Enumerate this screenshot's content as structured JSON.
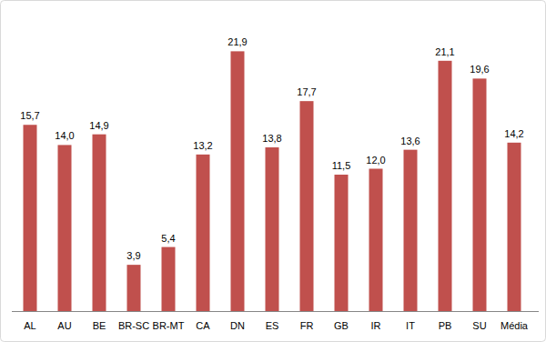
{
  "chart_data": {
    "type": "bar",
    "categories": [
      "AL",
      "AU",
      "BE",
      "BR-SC",
      "BR-MT",
      "CA",
      "DN",
      "ES",
      "FR",
      "GB",
      "IR",
      "IT",
      "PB",
      "SU",
      "Média"
    ],
    "values": [
      15.7,
      14.0,
      14.9,
      3.9,
      5.4,
      13.2,
      21.9,
      13.8,
      17.7,
      11.5,
      12.0,
      13.6,
      21.1,
      19.6,
      14.2
    ],
    "value_labels": [
      "15,7",
      "14,0",
      "14,9",
      "3,9",
      "5,4",
      "13,2",
      "21,9",
      "13,8",
      "17,7",
      "11,5",
      "12,0",
      "13,6",
      "21,1",
      "19,6",
      "14,2"
    ],
    "color": "#c0504d",
    "ylim": [
      0,
      24
    ],
    "grid": false,
    "data_labels": true,
    "tick_labels": "x"
  }
}
